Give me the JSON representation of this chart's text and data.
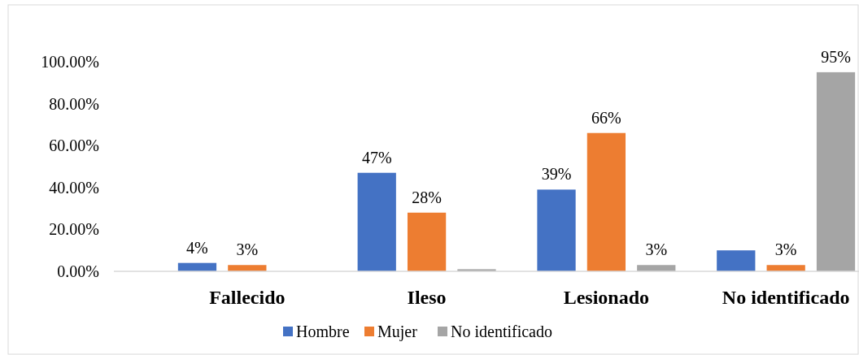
{
  "chart_data": {
    "type": "bar",
    "categories": [
      "Fallecido",
      "Ileso",
      "Lesionado",
      "No identificado"
    ],
    "series": [
      {
        "name": "Hombre",
        "color": "#4472c4",
        "values": [
          4,
          47,
          39,
          10
        ],
        "value_labels": [
          "4%",
          "47%",
          "39%",
          null
        ]
      },
      {
        "name": "Mujer",
        "color": "#ed7d31",
        "values": [
          3,
          28,
          66,
          3
        ],
        "value_labels": [
          "3%",
          "28%",
          "66%",
          "3%"
        ]
      },
      {
        "name": "No identificado",
        "color": "#a5a5a5",
        "values": [
          null,
          1,
          3,
          95
        ],
        "value_labels": [
          null,
          null,
          "3%",
          "95%"
        ]
      }
    ],
    "ylim": [
      0,
      100
    ],
    "yticks": [
      {
        "value": 0,
        "label": "0.00%"
      },
      {
        "value": 20,
        "label": "20.00%"
      },
      {
        "value": 40,
        "label": "40.00%"
      },
      {
        "value": 60,
        "label": "60.00%"
      },
      {
        "value": 80,
        "label": "80.00%"
      },
      {
        "value": 100,
        "label": "100.00%"
      }
    ],
    "grid": false,
    "legend": "bottom"
  }
}
